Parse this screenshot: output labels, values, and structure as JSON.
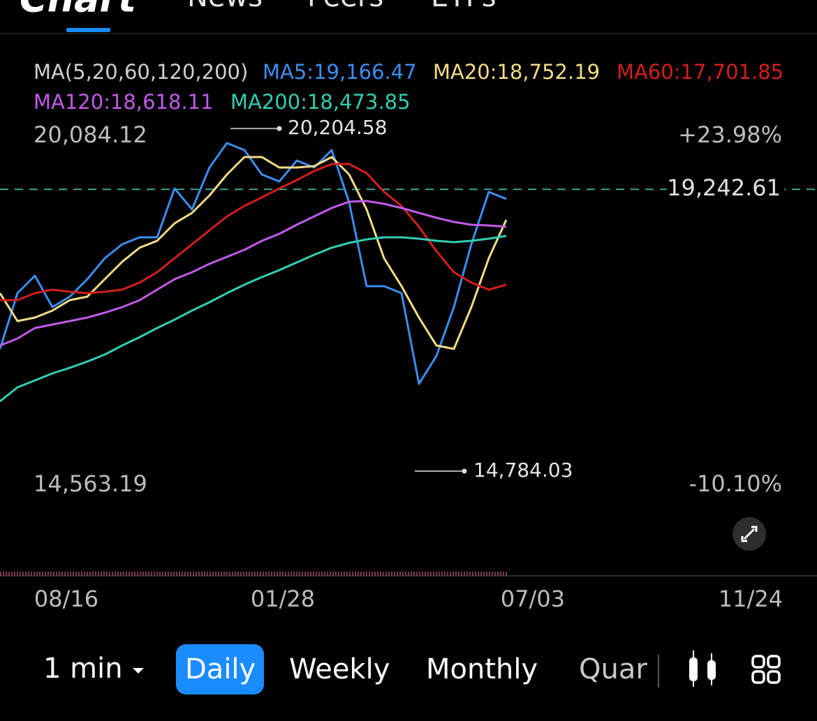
{
  "tabs": [
    "Chart",
    "News",
    "Peers",
    "ETFs"
  ],
  "chart_data": {
    "type": "line",
    "indicator": "MA(5,20,60,120,200)",
    "series": [
      {
        "name": "MA5:19,166.47",
        "color": "#3b8ef0",
        "values": [
          16717,
          17600,
          17876,
          17379,
          17545,
          17821,
          18152,
          18373,
          18483,
          18483,
          19256,
          18925,
          19587,
          19974,
          19863,
          19477,
          19366,
          19698,
          19587,
          19863,
          19035,
          17710,
          17710,
          17600,
          16165,
          16606,
          17379,
          18373,
          19201,
          19090
        ]
      },
      {
        "name": "MA20:18,752.19",
        "color": "#f3dc86",
        "values": [
          17600,
          17158,
          17213,
          17324,
          17489,
          17545,
          17821,
          18097,
          18318,
          18428,
          18704,
          18869,
          19146,
          19477,
          19753,
          19753,
          19587,
          19587,
          19609,
          19753,
          19477,
          18925,
          18152,
          17710,
          17213,
          16772,
          16717,
          17379,
          18152,
          18759
        ]
      },
      {
        "name": "MA60:17,701.85",
        "color": "#d21f1d",
        "values": [
          17489,
          17489,
          17600,
          17655,
          17622,
          17600,
          17622,
          17655,
          17766,
          17931,
          18152,
          18373,
          18594,
          18814,
          18980,
          19113,
          19256,
          19389,
          19532,
          19642,
          19642,
          19499,
          19201,
          18980,
          18649,
          18263,
          17931,
          17766,
          17655,
          17733
        ]
      },
      {
        "name": "MA120:18,618.11",
        "color": "#c25ae8",
        "values": [
          16772,
          16882,
          17048,
          17103,
          17158,
          17213,
          17291,
          17379,
          17489,
          17655,
          17821,
          17931,
          18064,
          18174,
          18285,
          18428,
          18538,
          18682,
          18814,
          18947,
          19046,
          19057,
          19013,
          18947,
          18869,
          18792,
          18726,
          18682,
          18671,
          18649
        ]
      },
      {
        "name": "MA200:18,473.85",
        "color": "#33cdb3",
        "values": [
          15889,
          16109,
          16220,
          16330,
          16419,
          16518,
          16628,
          16772,
          16904,
          17048,
          17180,
          17324,
          17456,
          17600,
          17733,
          17854,
          17964,
          18086,
          18207,
          18318,
          18395,
          18450,
          18483,
          18483,
          18461,
          18428,
          18406,
          18428,
          18461,
          18505
        ]
      }
    ],
    "ylim": [
      14563.19,
      20084.12
    ],
    "yticks": [
      {
        "value": 20084.12,
        "label": "20,084.12"
      },
      {
        "value": 14563.19,
        "label": "14,563.19"
      }
    ],
    "y2lim": [
      -10.1,
      23.98
    ],
    "y2ticks": [
      {
        "value": 23.98,
        "label": "+23.98%"
      },
      {
        "value": -10.1,
        "label": "-10.10%"
      }
    ],
    "high": {
      "value": 20204.58,
      "label": "20,204.58"
    },
    "low": {
      "value": 14784.03,
      "label": "14,784.03"
    },
    "last_price": {
      "value": 19242.61,
      "label": "19,242.61"
    },
    "x_labels": [
      "08/16",
      "01/28",
      "07/03",
      "11/24"
    ]
  },
  "toolbar": {
    "interval": "1 min",
    "periods": [
      "Daily",
      "Weekly",
      "Monthly",
      "Quar"
    ],
    "selected": 0
  }
}
